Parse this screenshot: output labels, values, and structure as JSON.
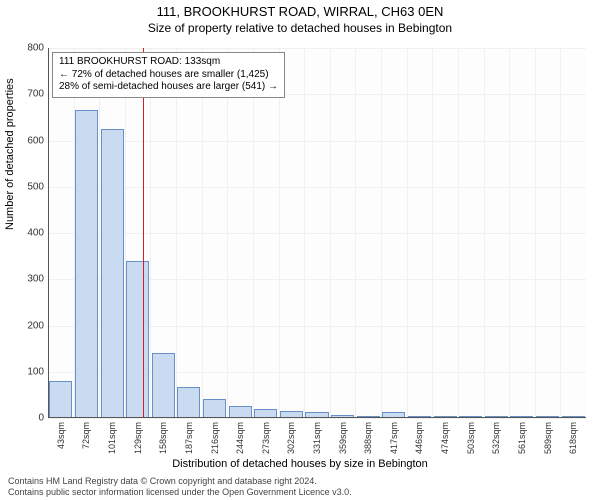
{
  "title": "111, BROOKHURST ROAD, WIRRAL, CH63 0EN",
  "subtitle": "Size of property relative to detached houses in Bebington",
  "ylabel": "Number of detached properties",
  "xlabel": "Distribution of detached houses by size in Bebington",
  "chart": {
    "type": "bar",
    "ylim": [
      0,
      800
    ],
    "ytick_step": 100,
    "x_categories": [
      "43sqm",
      "72sqm",
      "101sqm",
      "129sqm",
      "158sqm",
      "187sqm",
      "216sqm",
      "244sqm",
      "273sqm",
      "302sqm",
      "331sqm",
      "359sqm",
      "388sqm",
      "417sqm",
      "446sqm",
      "474sqm",
      "503sqm",
      "532sqm",
      "561sqm",
      "589sqm",
      "618sqm"
    ],
    "values": [
      80,
      665,
      625,
      340,
      140,
      68,
      42,
      26,
      20,
      16,
      12,
      6,
      4,
      12,
      4,
      2,
      2,
      1,
      1,
      1,
      1
    ],
    "bar_fill": "#c9dbf0",
    "bar_stroke": "#6a8fc7",
    "grid_color": "#f0f0f0",
    "background_color": "#ffffff",
    "marker_position_ratio": 0.176,
    "marker_color": "#cc2222"
  },
  "annotation": {
    "line1": "111 BROOKHURST ROAD: 133sqm",
    "line2": "← 72% of detached houses are smaller (1,425)",
    "line3": "28% of semi-detached houses are larger (541) →"
  },
  "footer": {
    "line1": "Contains HM Land Registry data © Crown copyright and database right 2024.",
    "line2": "Contains public sector information licensed under the Open Government Licence v3.0."
  }
}
